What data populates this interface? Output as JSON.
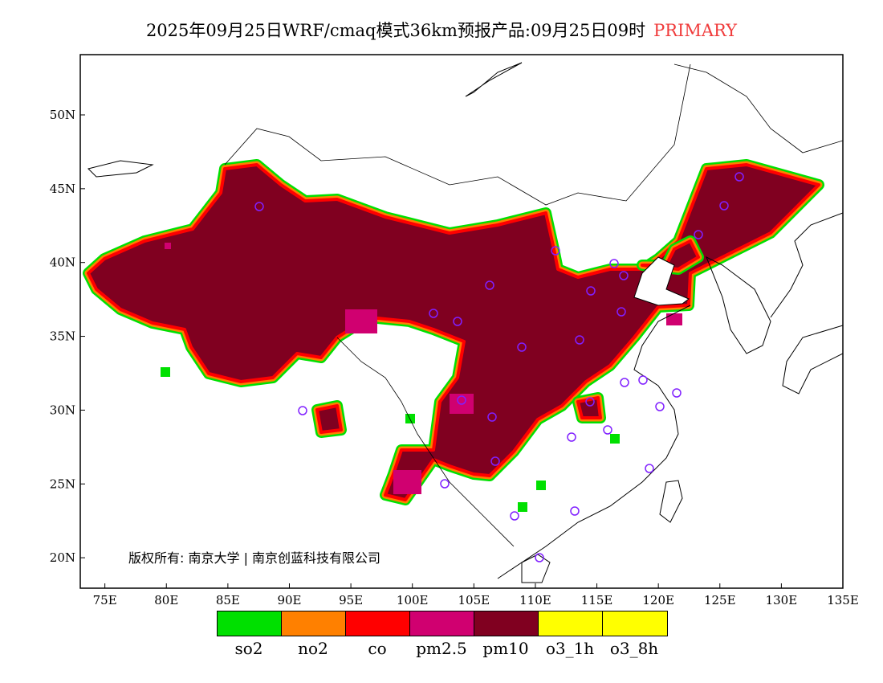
{
  "title": {
    "main": "2025年09月25日WRF/cmaq模式36km预报产品:09月25日09时",
    "tag": "PRIMARY"
  },
  "axes": {
    "lon_ticks": [
      "75E",
      "80E",
      "85E",
      "90E",
      "95E",
      "100E",
      "105E",
      "110E",
      "115E",
      "120E",
      "125E",
      "130E",
      "135E"
    ],
    "lat_ticks": [
      "50N",
      "45N",
      "40N",
      "35N",
      "30N",
      "25N",
      "20N"
    ]
  },
  "copyright": "版权所有: 南京大学 | 南京创蓝科技有限公司",
  "legend": [
    {
      "label": "so2",
      "color": "#00e000"
    },
    {
      "label": "no2",
      "color": "#ff8000"
    },
    {
      "label": "co",
      "color": "#ff0000"
    },
    {
      "label": "pm2.5",
      "color": "#d00070"
    },
    {
      "label": "pm10",
      "color": "#800020"
    },
    {
      "label": "o3_1h",
      "color": "#ffff00"
    },
    {
      "label": "o3_8h",
      "color": "#ffff00"
    }
  ]
}
